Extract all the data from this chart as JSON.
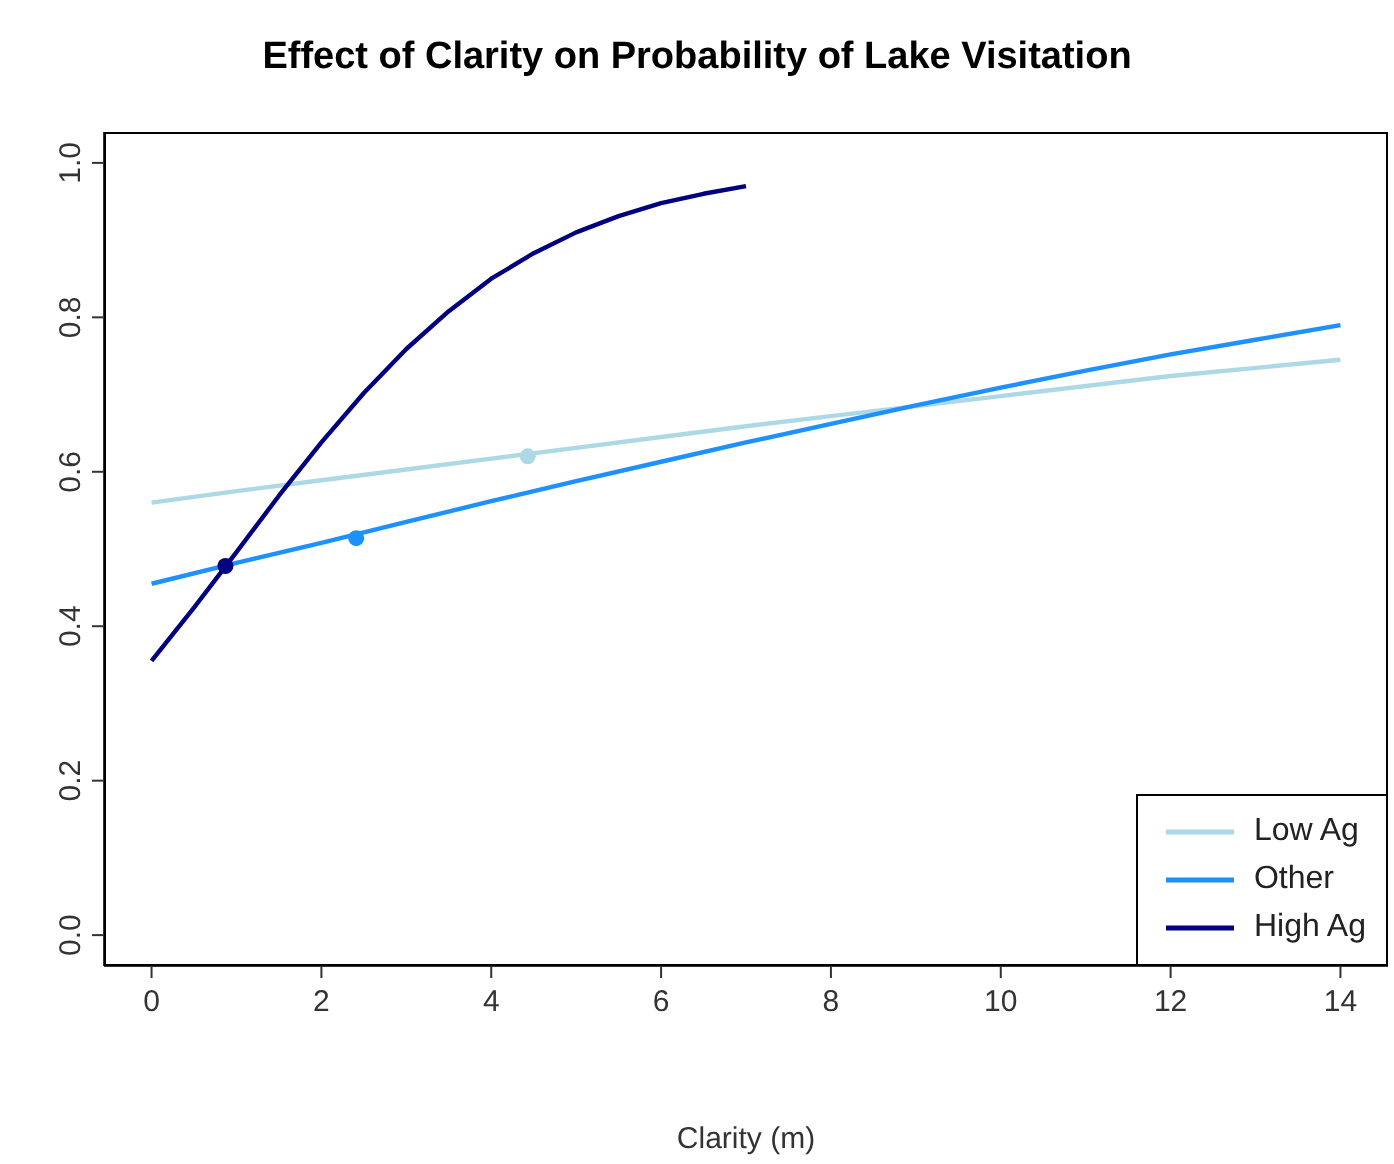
{
  "chart_data": {
    "type": "line",
    "title": "Effect of Clarity on Probability of Lake Visitation",
    "xlabel": "Clarity (m)",
    "xlim": [
      -0.56,
      14.56
    ],
    "xticks": [
      0,
      2,
      4,
      6,
      8,
      10,
      12,
      14
    ],
    "ylim": [
      -0.04,
      1.04
    ],
    "yticks": [
      {
        "value": 0,
        "label": "0.0"
      },
      0.2,
      0.4,
      0.6,
      0.8,
      {
        "value": 1,
        "label": "1.0"
      }
    ],
    "legend": "bottom right",
    "grid": false,
    "series": [
      {
        "name": "Low Ag",
        "color": "#add8e6",
        "x": [
          0,
          1,
          2,
          3,
          4,
          5,
          6,
          7,
          8,
          9,
          10,
          12,
          14
        ],
        "values": [
          0.56,
          0.575,
          0.589,
          0.603,
          0.617,
          0.631,
          0.645,
          0.659,
          0.672,
          0.685,
          0.698,
          0.724,
          0.745
        ]
      },
      {
        "name": "Other",
        "color": "#1e90ff",
        "x": [
          0,
          1,
          2,
          3,
          4,
          5,
          6,
          7,
          8,
          9,
          10,
          11,
          12,
          13,
          14
        ],
        "values": [
          0.455,
          0.482,
          0.508,
          0.535,
          0.562,
          0.588,
          0.613,
          0.638,
          0.662,
          0.686,
          0.709,
          0.731,
          0.752,
          0.771,
          0.79
        ]
      },
      {
        "name": "High Ag",
        "color": "#000080",
        "x": [
          0,
          0.5,
          1,
          1.5,
          2,
          2.5,
          3,
          3.5,
          4,
          4.5,
          5,
          5.5,
          6,
          6.5,
          7
        ],
        "values": [
          0.355,
          0.424,
          0.496,
          0.569,
          0.638,
          0.702,
          0.759,
          0.808,
          0.85,
          0.883,
          0.91,
          0.931,
          0.948,
          0.96,
          0.97
        ]
      },
      {
        "type": "scatter",
        "color": "#add8e6",
        "marker": "circle",
        "x": [
          4.43
        ],
        "values": [
          0.62
        ]
      },
      {
        "type": "scatter",
        "color": "#1e90ff",
        "marker": "circle",
        "x": [
          2.41
        ],
        "values": [
          0.514
        ]
      },
      {
        "type": "scatter",
        "color": "#000080",
        "marker": "circle",
        "x": [
          0.87
        ],
        "values": [
          0.478
        ]
      }
    ]
  }
}
